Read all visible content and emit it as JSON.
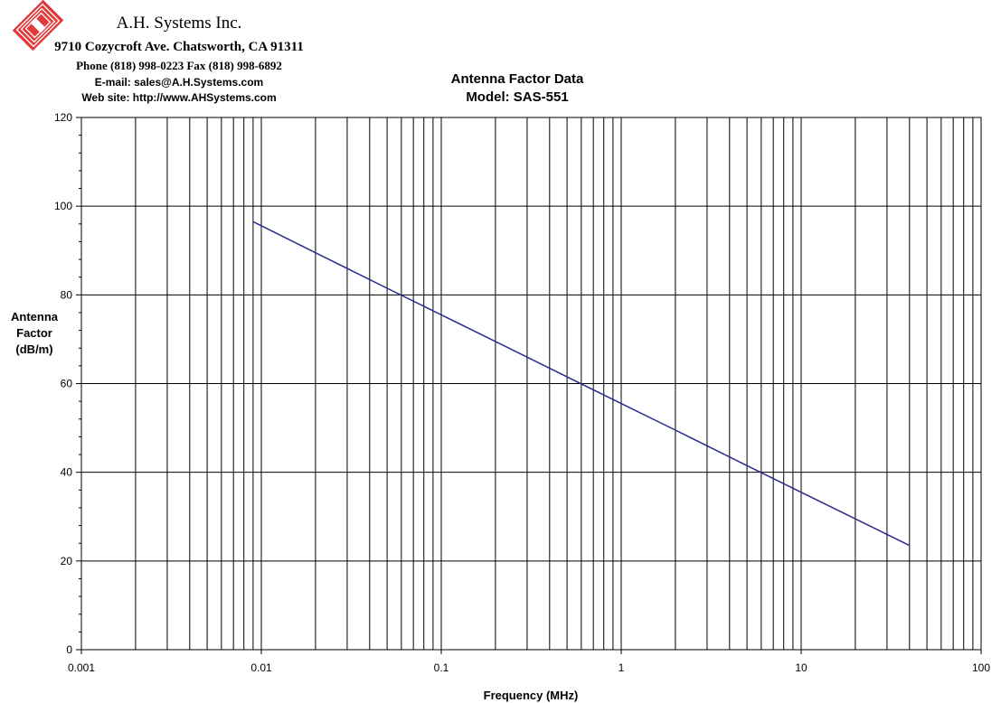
{
  "header": {
    "company": "A.H. Systems Inc.",
    "address": "9710 Cozycroft Ave. Chatsworth, CA 91311",
    "phone": "Phone (818) 998-0223 Fax (818) 998-6892",
    "email": "E-mail: sales@A.H.Systems.com",
    "website": "Web site: http://www.AHSystems.com",
    "logo_color": "#e23a3a"
  },
  "chart_data": {
    "type": "line",
    "title": "Antenna Factor Data",
    "subtitle": "Model: SAS-551",
    "xlabel": "Frequency (MHz)",
    "ylabel": [
      "Antenna",
      "Factor",
      "(dB/m)"
    ],
    "x_scale": "log",
    "xlim": [
      0.001,
      100
    ],
    "ylim": [
      0,
      120
    ],
    "x_ticks": [
      "0.001",
      "0.01",
      "0.1",
      "1",
      "10",
      "100"
    ],
    "y_ticks": [
      "0",
      "20",
      "40",
      "60",
      "80",
      "100",
      "120"
    ],
    "grid": true,
    "line_color": "#2b2b8f",
    "series": [
      {
        "x": [
          0.009,
          0.02,
          0.05,
          0.1,
          0.2,
          0.5,
          1,
          2,
          5,
          10,
          20,
          40
        ],
        "y": [
          96.5,
          89.5,
          81.5,
          75.5,
          69.5,
          61.5,
          55.5,
          49.5,
          41.5,
          35.5,
          29.5,
          23.5
        ]
      }
    ]
  }
}
